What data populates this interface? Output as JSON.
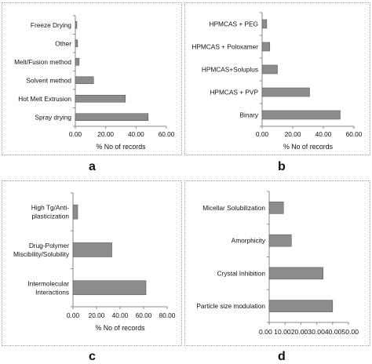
{
  "panel_letters": {
    "a": "a",
    "b": "b",
    "c": "c",
    "d": "d"
  },
  "chart_data": [
    {
      "type": "bar",
      "orientation": "horizontal",
      "categories": [
        "Freeze Drying",
        "Other",
        "Melt/Fusion method",
        "Solvent method",
        "Hot Melt Extrusion",
        "Spray drying"
      ],
      "values": [
        1,
        1.5,
        2.5,
        12,
        33,
        48
      ],
      "xlabel": "% No of records",
      "ylabel": "",
      "xlim": [
        0,
        60
      ],
      "xticks": [
        "0.00",
        "20.00",
        "40.00",
        "60.00"
      ],
      "grid": false,
      "bar_color": "#8c8c8c"
    },
    {
      "type": "bar",
      "orientation": "horizontal",
      "categories": [
        "HPMCAS + PEG",
        "HPMCAS + Poloxamer",
        "HPMCAS+Soluplus",
        "HPMCAS + PVP",
        "Binary"
      ],
      "values": [
        3,
        5,
        10,
        31,
        51
      ],
      "xlabel": "% No of records",
      "ylabel": "",
      "xlim": [
        0,
        60
      ],
      "xticks": [
        "0.00",
        "20.00",
        "40.00",
        "60.00"
      ],
      "grid": false,
      "bar_color": "#8c8c8c"
    },
    {
      "type": "bar",
      "orientation": "horizontal",
      "categories": [
        [
          "High Tg/Anti-",
          "plasticization"
        ],
        [
          "Drug-Polymer",
          "Miscibility/Solubility"
        ],
        [
          "Intermolecular",
          "Interactions"
        ]
      ],
      "values": [
        4,
        33,
        62
      ],
      "xlabel": "% No of records",
      "ylabel": "",
      "xlim": [
        0,
        80
      ],
      "xticks": [
        "0.00",
        "20.00",
        "40.00",
        "60.00",
        "80.00"
      ],
      "grid": false,
      "bar_color": "#8c8c8c"
    },
    {
      "type": "bar",
      "orientation": "horizontal",
      "categories": [
        "Micellar Solubilization",
        "Amorphicity",
        "Crystal Inhibition",
        "Particle size modulation"
      ],
      "values": [
        9,
        14,
        34,
        40
      ],
      "xlabel": "",
      "ylabel": "",
      "xlim": [
        0,
        50
      ],
      "xticks": [
        "0.00",
        "10.00",
        "20.00",
        "30.00",
        "40.00",
        "50.00"
      ],
      "xtick_display": "0.00 10.0020.0030.0040.0050.00",
      "grid": false,
      "bar_color": "#8c8c8c"
    }
  ]
}
